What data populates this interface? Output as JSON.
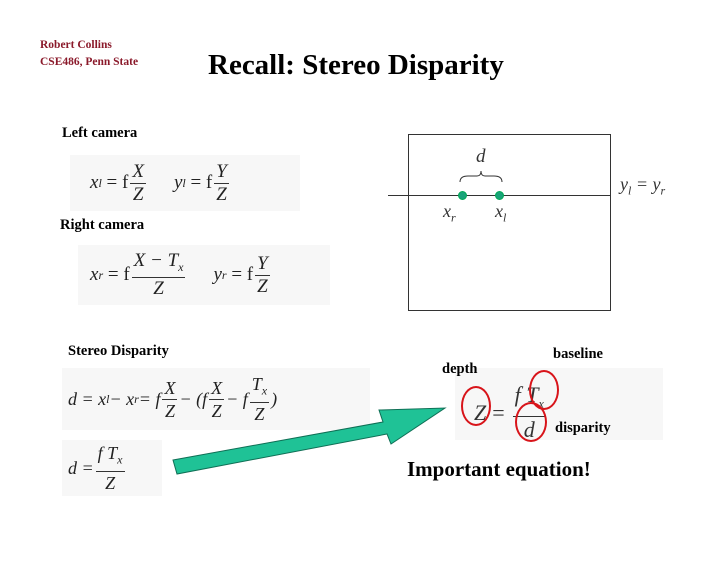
{
  "header": {
    "author": "Robert Collins",
    "course": "CSE486, Penn State",
    "title": "Recall: Stereo Disparity"
  },
  "left": {
    "label": "Left camera",
    "eq1": {
      "lhs": "x",
      "lhs_sub": "l",
      "rhs": "= f",
      "num": "X",
      "den": "Z"
    },
    "eq2": {
      "lhs": "y",
      "lhs_sub": "l",
      "rhs": "= f",
      "num": "Y",
      "den": "Z"
    }
  },
  "right": {
    "label": "Right camera",
    "eq1": {
      "lhs": "x",
      "lhs_sub": "r",
      "rhs": "= f",
      "num": "X − T",
      "num_sub": "x",
      "den": "Z"
    },
    "eq2": {
      "lhs": "y",
      "lhs_sub": "r",
      "rhs": "= f",
      "num": "Y",
      "den": "Z"
    }
  },
  "diagram": {
    "d": "d",
    "xr": "x",
    "xr_sub": "r",
    "xl": "x",
    "xl_sub": "l",
    "yeq": "y",
    "yeq_sub1": "l",
    "yeq_mid": " = y",
    "yeq_sub2": "r",
    "point_color": "#1aa37a"
  },
  "disparity": {
    "label": "Stereo Disparity",
    "eq1": {
      "a": "d = x",
      "a_sub": "l",
      "b": " − x",
      "b_sub": "r",
      "c": " = f",
      "f1n": "X",
      "f1d": "Z",
      "d": " − (f",
      "f2n": "X",
      "f2d": "Z",
      "e": " − f",
      "f3n": "T",
      "f3n_sub": "x",
      "f3d": "Z",
      "g": ")"
    },
    "eq2": {
      "a": "d =",
      "num": "f T",
      "num_sub": "x",
      "den": "Z"
    }
  },
  "important": {
    "depth": "depth",
    "baseline": "baseline",
    "disparity": "disparity",
    "lhs": "Z",
    "eq": "=",
    "num": "f T",
    "num_sub": "x",
    "den": "d",
    "caption": "Important equation!",
    "circle_color": "#d8141a"
  },
  "arrow": {
    "color": "#1fc296"
  }
}
